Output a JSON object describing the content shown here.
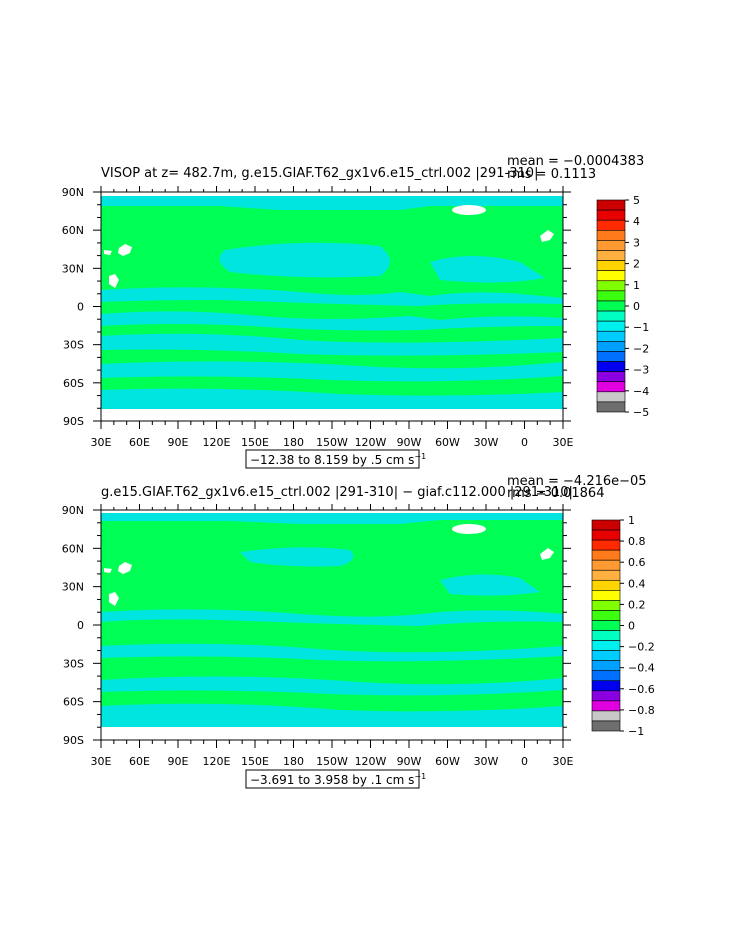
{
  "colors": {
    "ocean_bg": "#00ff55",
    "cyan_band": "#00e5e0",
    "land": "#ffffff"
  },
  "chart_data": [
    {
      "type": "heatmap",
      "title": "VISOP at z= 482.7m, g.e15.GIAF.T62_gx1v6.e15_ctrl.002 |291-310|",
      "stats": {
        "mean": "mean = −0.0004383",
        "rms": "rms = 0.1113"
      },
      "range_label": "−12.38 to 8.159 by .5 cm s",
      "range_unit_exp": "−1",
      "x_ticks": [
        "30E",
        "60E",
        "90E",
        "120E",
        "150E",
        "180",
        "150W",
        "120W",
        "90W",
        "60W",
        "30W",
        "0",
        "30E"
      ],
      "y_ticks": [
        "90N",
        "60N",
        "30N",
        "0",
        "30S",
        "60S",
        "90S"
      ],
      "colorbar": {
        "labels": [
          "5",
          "4",
          "3",
          "2",
          "1",
          "0",
          "−1",
          "−2",
          "−3",
          "−4",
          "−5"
        ],
        "colors": [
          "#cc0000",
          "#e80000",
          "#ff2a00",
          "#ff7a1a",
          "#ff9a33",
          "#ffb040",
          "#ffd400",
          "#ffff00",
          "#80ff00",
          "#3cff10",
          "#00ff55",
          "#00ffc0",
          "#00f0f0",
          "#00ccff",
          "#00a0ff",
          "#0070ff",
          "#0000ee",
          "#8a00e0",
          "#e000e0",
          "#c8c8c8",
          "#6e6e6e"
        ]
      }
    },
    {
      "type": "heatmap",
      "title": "g.e15.GIAF.T62_gx1v6.e15_ctrl.002 |291-310| − giaf.c112.000 |291-310|",
      "stats": {
        "mean": "mean = −4.216e−05",
        "rms": "rms = 0.01864"
      },
      "range_label": "−3.691 to 3.958 by .1 cm s",
      "range_unit_exp": "−1",
      "x_ticks": [
        "30E",
        "60E",
        "90E",
        "120E",
        "150E",
        "180",
        "150W",
        "120W",
        "90W",
        "60W",
        "30W",
        "0",
        "30E"
      ],
      "y_ticks": [
        "90N",
        "60N",
        "30N",
        "0",
        "30S",
        "60S",
        "90S"
      ],
      "colorbar": {
        "labels": [
          "1",
          "0.8",
          "0.6",
          "0.4",
          "0.2",
          "0",
          "−0.2",
          "−0.4",
          "−0.6",
          "−0.8",
          "−1"
        ],
        "colors": [
          "#cc0000",
          "#e80000",
          "#ff2a00",
          "#ff7a1a",
          "#ff9a33",
          "#ffb040",
          "#ffd400",
          "#ffff00",
          "#80ff00",
          "#3cff10",
          "#00ff55",
          "#00ffc0",
          "#00f0f0",
          "#00ccff",
          "#00a0ff",
          "#0070ff",
          "#0000ee",
          "#8a00e0",
          "#e000e0",
          "#c8c8c8",
          "#6e6e6e"
        ]
      }
    }
  ]
}
